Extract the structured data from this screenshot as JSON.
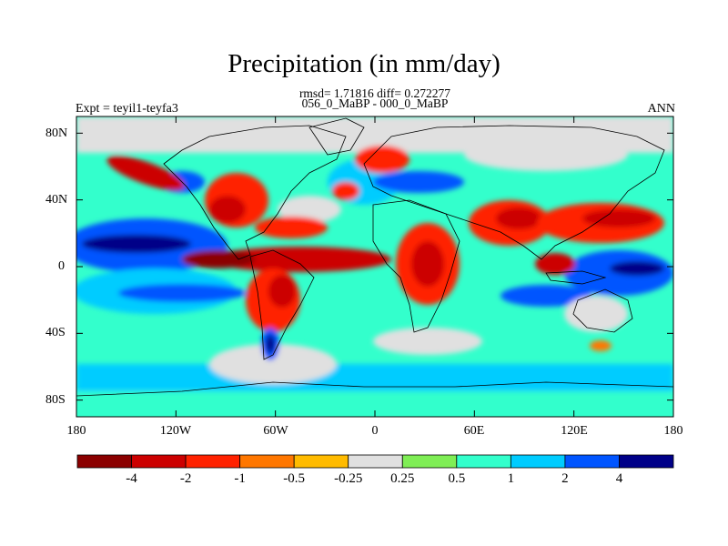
{
  "title": "Precipitation (in mm/day)",
  "stats_line": "rmsd= 1.71816 diff= 0.272277",
  "cases_line": "056_0_MaBP - 000_0_MaBP",
  "left_label": "Expt = teyil1-teyfa3",
  "right_label": "ANN",
  "map": {
    "projection": "cylindrical-equidistant",
    "lon_range": [
      -180,
      180
    ],
    "lat_range": [
      -90,
      90
    ],
    "x_ticks": [
      "180",
      "120W",
      "60W",
      "0",
      "60E",
      "120E",
      "180"
    ],
    "y_ticks": [
      "80N",
      "40N",
      "0",
      "40S",
      "80S"
    ],
    "field": "precipitation difference",
    "units": "mm/day"
  },
  "colorbar": {
    "levels": [
      "-4",
      "-2",
      "-1",
      "-0.5",
      "-0.25",
      "0.25",
      "0.5",
      "1",
      "2",
      "4"
    ],
    "colors": [
      "#8b0000",
      "#cc0000",
      "#ff2200",
      "#ff7700",
      "#ffbb00",
      "#e0e0e0",
      "#7fee55",
      "#33ffcc",
      "#00ccff",
      "#0055ff",
      "#000088"
    ]
  }
}
